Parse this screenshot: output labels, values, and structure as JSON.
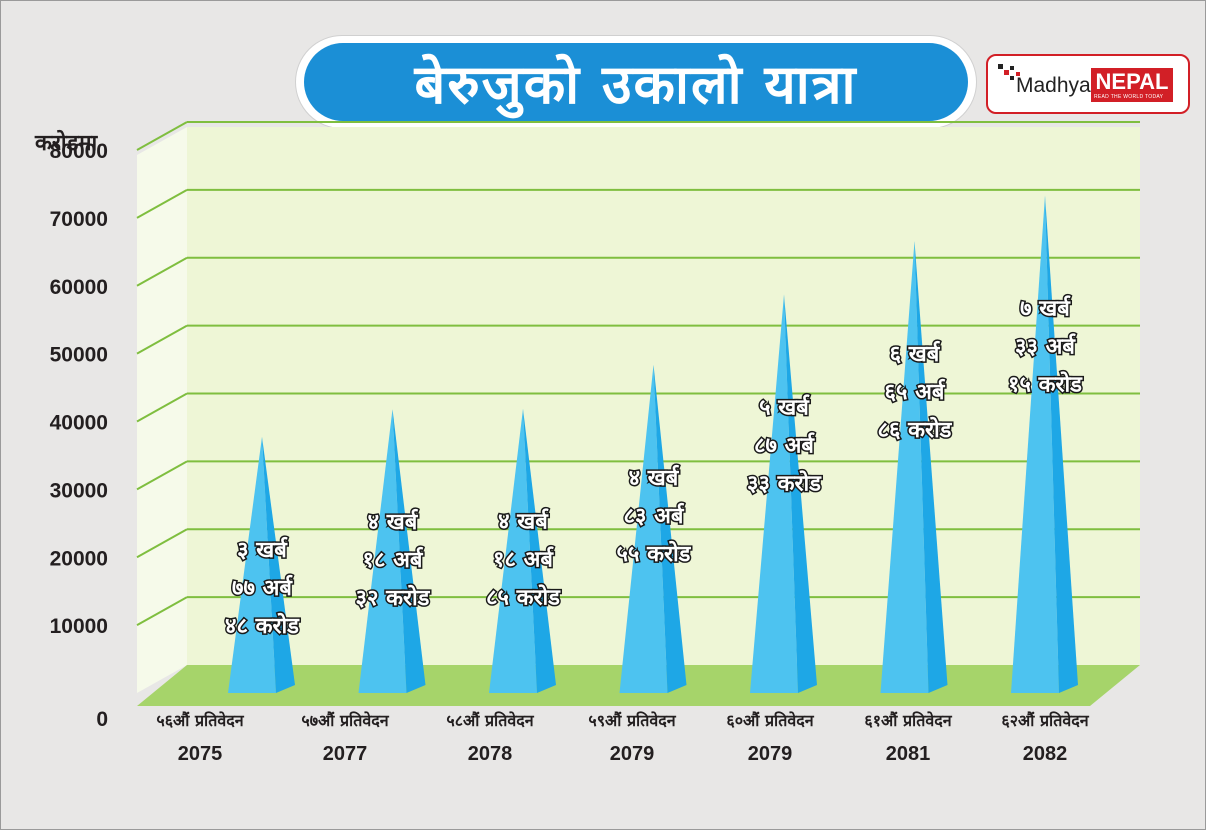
{
  "title": "बेरुजुको उकालो यात्रा",
  "logo": {
    "madhya": "Madhya",
    "nepal": "NEPAL",
    "tagline": "READ THE WORLD TODAY"
  },
  "colors": {
    "background": "#e8e7e6",
    "title_bg": "#1b8fd6",
    "plot_bg": "#eef6d6",
    "gridline": "#7fbe3f",
    "floor": "#a6d46a",
    "cone_front": "#4dc3f0",
    "cone_side": "#1ea7e6",
    "logo_red": "#d21f26"
  },
  "chart_data": {
    "type": "bar",
    "ylabel": "करोडमा",
    "ylim": [
      0,
      80000
    ],
    "yticks": [
      0,
      10000,
      20000,
      30000,
      40000,
      50000,
      60000,
      70000,
      80000
    ],
    "grid": true,
    "categories": [
      {
        "report": "५६औं प्रतिवेदन",
        "year": "2075"
      },
      {
        "report": "५७औं प्रतिवेदन",
        "year": "2077"
      },
      {
        "report": "५८औं प्रतिवेदन",
        "year": "2078"
      },
      {
        "report": "५९औं प्रतिवेदन",
        "year": "2079"
      },
      {
        "report": "६०औं प्रतिवेदन",
        "year": "2079"
      },
      {
        "report": "६१औं प्रतिवेदन",
        "year": "2081"
      },
      {
        "report": "६२औं प्रतिवेदन",
        "year": "2082"
      }
    ],
    "values": [
      37748,
      41832,
      41885,
      48355,
      58733,
      66586,
      73315
    ],
    "data_labels": [
      [
        "३ खर्ब",
        "७७ अर्ब",
        "४८ करोड"
      ],
      [
        "४ खर्ब",
        "१८ अर्ब",
        "३२ करोड"
      ],
      [
        "४ खर्ब",
        "१८ अर्ब",
        "८५ करोड"
      ],
      [
        "४ खर्ब",
        "८३ अर्ब",
        "५५ करोड"
      ],
      [
        "५ खर्ब",
        "८७ अर्ब",
        "३३ करोड"
      ],
      [
        "६ खर्ब",
        "६५ अर्ब",
        "८६ करोड"
      ],
      [
        "७ खर्ब",
        "३३ अर्ब",
        "१५ करोड"
      ]
    ]
  }
}
